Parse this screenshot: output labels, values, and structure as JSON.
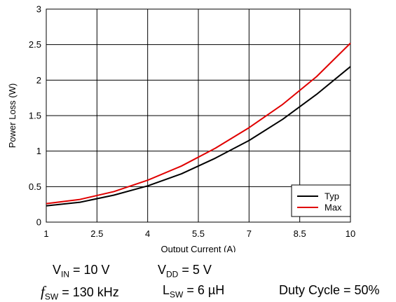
{
  "chart_data": {
    "type": "line",
    "xlabel": "Output Current (A)",
    "ylabel": "Power Loss (W)",
    "xlim": [
      1,
      10
    ],
    "ylim": [
      0,
      3
    ],
    "xticks": [
      "1",
      "2.5",
      "4",
      "5.5",
      "7",
      "8.5",
      "10"
    ],
    "yticks": [
      "0",
      "0.5",
      "1",
      "1.5",
      "2",
      "2.5",
      "3"
    ],
    "grid": true,
    "legend_position": "bottom-right",
    "x": [
      1,
      2,
      3,
      4,
      5,
      6,
      7,
      8,
      9,
      10
    ],
    "series": [
      {
        "name": "Typ",
        "color": "#000000",
        "values": [
          0.23,
          0.28,
          0.38,
          0.51,
          0.68,
          0.9,
          1.15,
          1.45,
          1.8,
          2.19
        ]
      },
      {
        "name": "Max",
        "color": "#e00000",
        "values": [
          0.26,
          0.32,
          0.43,
          0.59,
          0.79,
          1.04,
          1.33,
          1.66,
          2.05,
          2.52
        ]
      }
    ],
    "figure_id": "D002"
  },
  "conditions": {
    "vin_main": "V",
    "vin_sub": "IN",
    "vin_val": " = 10 V",
    "vdd_main": "V",
    "vdd_sub": "DD",
    "vdd_val": " = 5 V",
    "fsw_main": "f",
    "fsw_sub": "SW",
    "fsw_val": " = 130 kHz",
    "lsw_main": "L",
    "lsw_sub": "SW",
    "lsw_val": " = 6 µH",
    "duty": "Duty Cycle = 50%"
  }
}
